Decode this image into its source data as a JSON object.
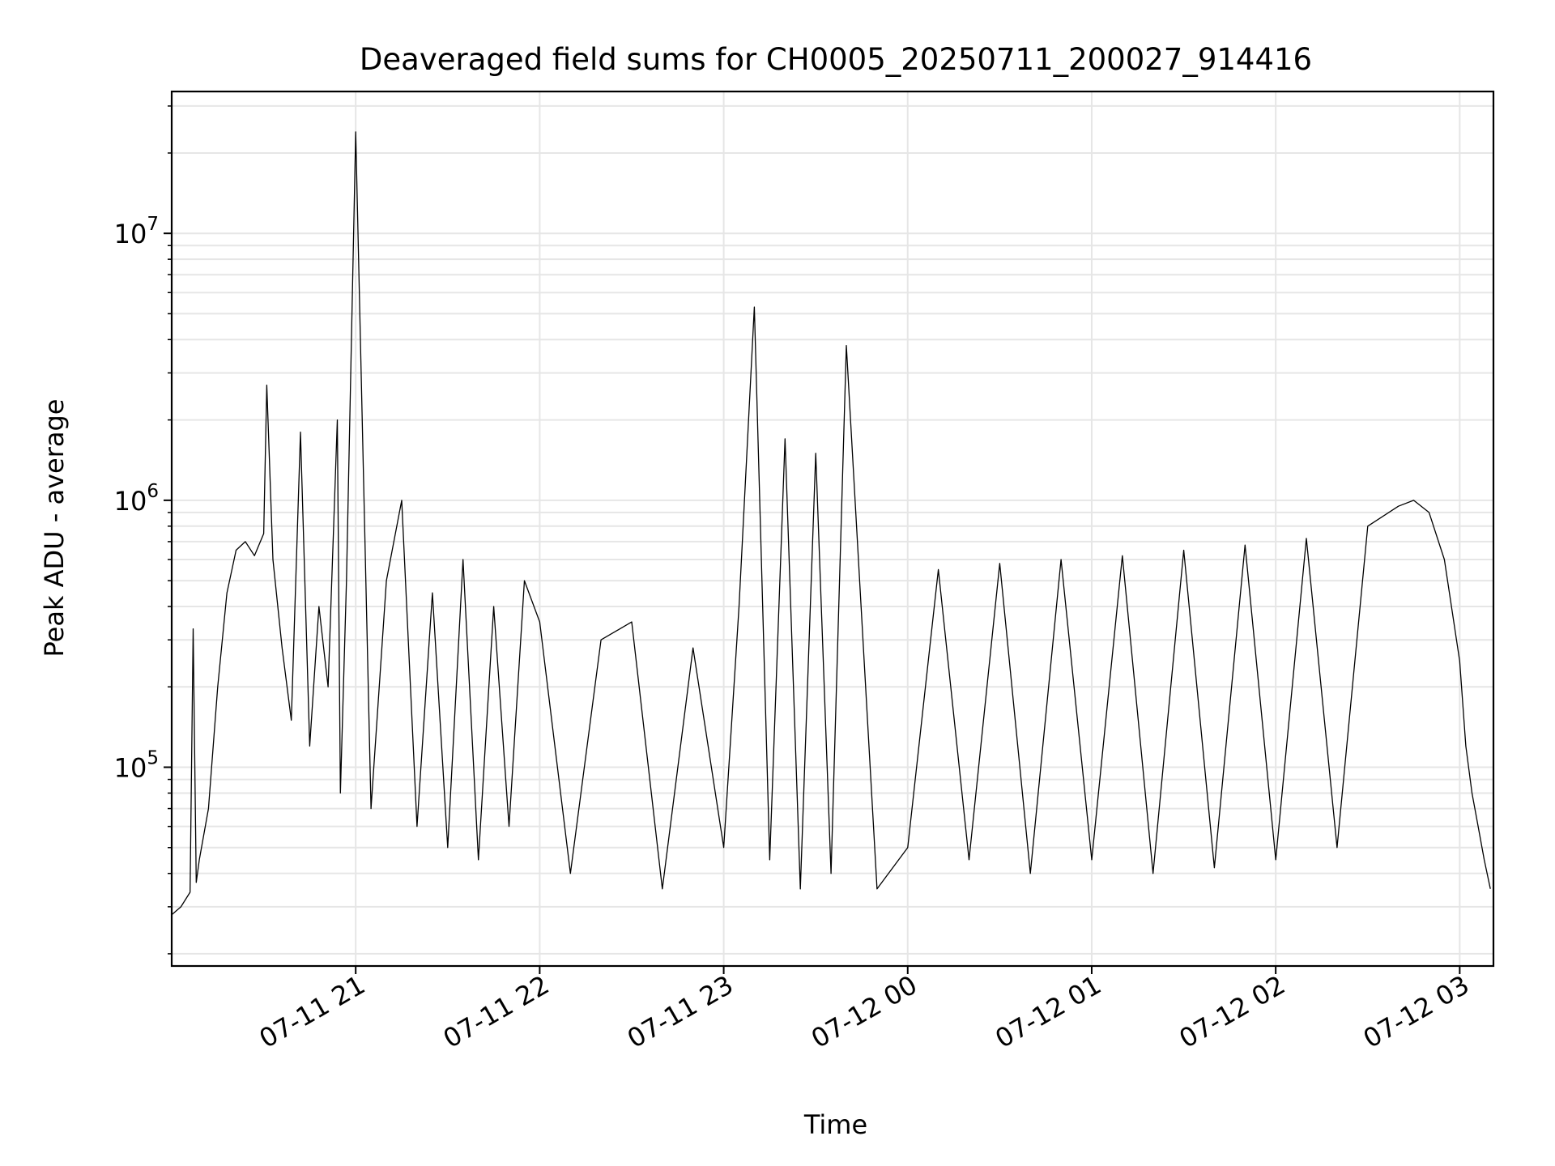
{
  "chart_data": {
    "type": "line",
    "title": "Deaveraged field sums for CH0005_20250711_200027_914416",
    "xlabel": "Time",
    "ylabel": "Peak ADU - average",
    "yscale": "log",
    "grid": true,
    "line_color": "#000000",
    "xlim": [
      "2025-07-11 20:00",
      "2025-07-12 03:11"
    ],
    "ylim": [
      18000,
      34000000
    ],
    "x_ticks": [
      {
        "value": "2025-07-11 21:00",
        "label": "07-11 21"
      },
      {
        "value": "2025-07-11 22:00",
        "label": "07-11 22"
      },
      {
        "value": "2025-07-11 23:00",
        "label": "07-11 23"
      },
      {
        "value": "2025-07-12 00:00",
        "label": "07-12 00"
      },
      {
        "value": "2025-07-12 01:00",
        "label": "07-12 01"
      },
      {
        "value": "2025-07-12 02:00",
        "label": "07-12 02"
      },
      {
        "value": "2025-07-12 03:00",
        "label": "07-12 03"
      }
    ],
    "y_ticks": [
      {
        "value": 100000,
        "base": "10",
        "exp": "5"
      },
      {
        "value": 1000000,
        "base": "10",
        "exp": "6"
      },
      {
        "value": 10000000,
        "base": "10",
        "exp": "7"
      }
    ],
    "series": [
      {
        "x": [
          "2025-07-11 20:00",
          "2025-07-11 20:03",
          "2025-07-11 20:06",
          "2025-07-11 20:07",
          "2025-07-11 20:08",
          "2025-07-11 20:09",
          "2025-07-11 20:12",
          "2025-07-11 20:15",
          "2025-07-11 20:18",
          "2025-07-11 20:21",
          "2025-07-11 20:24",
          "2025-07-11 20:27",
          "2025-07-11 20:30",
          "2025-07-11 20:31",
          "2025-07-11 20:33",
          "2025-07-11 20:36",
          "2025-07-11 20:39",
          "2025-07-11 20:42",
          "2025-07-11 20:45",
          "2025-07-11 20:48",
          "2025-07-11 20:51",
          "2025-07-11 20:54",
          "2025-07-11 20:55",
          "2025-07-11 20:57",
          "2025-07-11 21:00",
          "2025-07-11 21:05",
          "2025-07-11 21:10",
          "2025-07-11 21:15",
          "2025-07-11 21:20",
          "2025-07-11 21:25",
          "2025-07-11 21:30",
          "2025-07-11 21:35",
          "2025-07-11 21:40",
          "2025-07-11 21:45",
          "2025-07-11 21:50",
          "2025-07-11 21:55",
          "2025-07-11 22:00",
          "2025-07-11 22:10",
          "2025-07-11 22:20",
          "2025-07-11 22:30",
          "2025-07-11 22:40",
          "2025-07-11 22:50",
          "2025-07-11 23:00",
          "2025-07-11 23:05",
          "2025-07-11 23:10",
          "2025-07-11 23:15",
          "2025-07-11 23:20",
          "2025-07-11 23:25",
          "2025-07-11 23:30",
          "2025-07-11 23:35",
          "2025-07-11 23:40",
          "2025-07-11 23:50",
          "2025-07-12 00:00",
          "2025-07-12 00:10",
          "2025-07-12 00:20",
          "2025-07-12 00:30",
          "2025-07-12 00:40",
          "2025-07-12 00:50",
          "2025-07-12 01:00",
          "2025-07-12 01:10",
          "2025-07-12 01:20",
          "2025-07-12 01:30",
          "2025-07-12 01:40",
          "2025-07-12 01:50",
          "2025-07-12 02:00",
          "2025-07-12 02:10",
          "2025-07-12 02:20",
          "2025-07-12 02:30",
          "2025-07-12 02:40",
          "2025-07-12 02:45",
          "2025-07-12 02:50",
          "2025-07-12 02:55",
          "2025-07-12 03:00",
          "2025-07-12 03:02",
          "2025-07-12 03:04",
          "2025-07-12 03:06",
          "2025-07-12 03:08",
          "2025-07-12 03:10"
        ],
        "y": [
          28000,
          30000,
          34000,
          330000,
          37000,
          45000,
          70000,
          200000,
          450000,
          650000,
          700000,
          620000,
          750000,
          2700000,
          600000,
          280000,
          150000,
          1800000,
          120000,
          400000,
          200000,
          2000000,
          80000,
          500000,
          24000000,
          70000,
          500000,
          1000000,
          60000,
          450000,
          50000,
          600000,
          45000,
          400000,
          60000,
          500000,
          350000,
          40000,
          300000,
          350000,
          35000,
          280000,
          50000,
          400000,
          5300000,
          45000,
          1700000,
          35000,
          1500000,
          40000,
          3800000,
          35000,
          50000,
          550000,
          45000,
          580000,
          40000,
          600000,
          45000,
          620000,
          40000,
          650000,
          42000,
          680000,
          45000,
          720000,
          50000,
          800000,
          950000,
          1000000,
          900000,
          600000,
          250000,
          120000,
          80000,
          60000,
          45000,
          35000
        ]
      }
    ]
  }
}
